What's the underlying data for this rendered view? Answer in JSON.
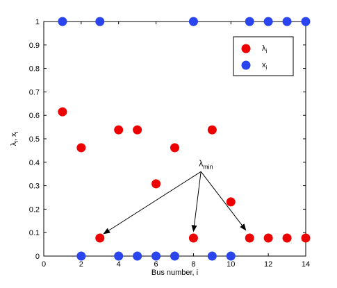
{
  "chart_data": {
    "type": "scatter",
    "title": "",
    "xlabel": "Bus number, i",
    "ylabel": {
      "main": "λ",
      "sub1": "i",
      "sep": ", x",
      "sub2": "i"
    },
    "xlim": [
      0,
      14
    ],
    "ylim": [
      0,
      1
    ],
    "xticks": [
      0,
      2,
      4,
      6,
      8,
      10,
      12,
      14
    ],
    "yticks": [
      0,
      0.1,
      0.2,
      0.3,
      0.4,
      0.5,
      0.6,
      0.7,
      0.8,
      0.9,
      1
    ],
    "grid": false,
    "legend_position": "top-right",
    "series": [
      {
        "name": "λi",
        "label_main": "λ",
        "label_sub": "i",
        "color": "#ee0000",
        "points": [
          [
            1,
            0.615
          ],
          [
            2,
            0.462
          ],
          [
            3,
            0.077
          ],
          [
            4,
            0.538
          ],
          [
            5,
            0.538
          ],
          [
            6,
            0.308
          ],
          [
            7,
            0.462
          ],
          [
            8,
            0.077
          ],
          [
            9,
            0.538
          ],
          [
            10,
            0.231
          ],
          [
            11,
            0.077
          ],
          [
            12,
            0.077
          ],
          [
            13,
            0.077
          ],
          [
            14,
            0.077
          ]
        ]
      },
      {
        "name": "xi",
        "label_main": "x",
        "label_sub": "i",
        "color": "#2a44ee",
        "points": [
          [
            1,
            1
          ],
          [
            2,
            0
          ],
          [
            3,
            1
          ],
          [
            4,
            0
          ],
          [
            5,
            0
          ],
          [
            6,
            0
          ],
          [
            7,
            0
          ],
          [
            8,
            1
          ],
          [
            9,
            0
          ],
          [
            10,
            0
          ],
          [
            11,
            1
          ],
          [
            12,
            1
          ],
          [
            13,
            1
          ],
          [
            14,
            1
          ]
        ]
      }
    ],
    "annotation": {
      "label_main": "λ",
      "label_sub": "min",
      "anchor": [
        8.4,
        0.36
      ],
      "targets": [
        [
          3.2,
          0.095
        ],
        [
          8,
          0.105
        ],
        [
          10.8,
          0.11
        ]
      ]
    }
  }
}
